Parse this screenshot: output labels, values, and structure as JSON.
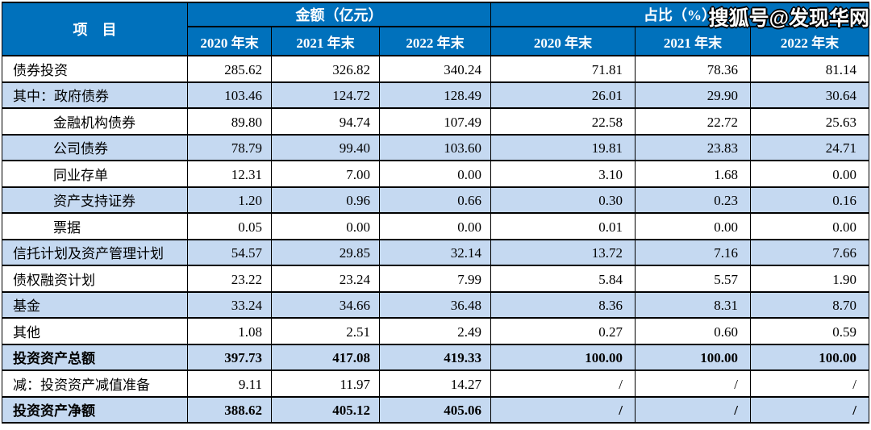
{
  "watermark": "搜狐号@发现华网",
  "colors": {
    "header_bg": "#0071BC",
    "row_alt_bg": "#C5D9F1",
    "border": "#000000",
    "header_text": "#FFFFFF",
    "body_text": "#000000"
  },
  "table": {
    "header": {
      "item_label": "项　目",
      "amount_group": "金额（亿元）",
      "ratio_group": "占比（%）",
      "year_cols": [
        "2020 年末",
        "2021 年末",
        "2022 年末"
      ]
    },
    "rows": [
      {
        "label": "债券投资",
        "indent": false,
        "bold": false,
        "amounts": [
          "285.62",
          "326.82",
          "340.24"
        ],
        "ratios": [
          "71.81",
          "78.36",
          "81.14"
        ]
      },
      {
        "label": "其中：政府债券",
        "indent": false,
        "bold": false,
        "amounts": [
          "103.46",
          "124.72",
          "128.49"
        ],
        "ratios": [
          "26.01",
          "29.90",
          "30.64"
        ]
      },
      {
        "label": "金融机构债券",
        "indent": true,
        "bold": false,
        "amounts": [
          "89.80",
          "94.74",
          "107.49"
        ],
        "ratios": [
          "22.58",
          "22.72",
          "25.63"
        ]
      },
      {
        "label": "公司债券",
        "indent": true,
        "bold": false,
        "amounts": [
          "78.79",
          "99.40",
          "103.60"
        ],
        "ratios": [
          "19.81",
          "23.83",
          "24.71"
        ]
      },
      {
        "label": "同业存单",
        "indent": true,
        "bold": false,
        "amounts": [
          "12.31",
          "7.00",
          "0.00"
        ],
        "ratios": [
          "3.10",
          "1.68",
          "0.00"
        ]
      },
      {
        "label": "资产支持证券",
        "indent": true,
        "bold": false,
        "amounts": [
          "1.20",
          "0.96",
          "0.66"
        ],
        "ratios": [
          "0.30",
          "0.23",
          "0.16"
        ]
      },
      {
        "label": "票据",
        "indent": true,
        "bold": false,
        "amounts": [
          "0.05",
          "0.00",
          "0.00"
        ],
        "ratios": [
          "0.01",
          "0.00",
          "0.00"
        ]
      },
      {
        "label": "信托计划及资产管理计划",
        "indent": false,
        "bold": false,
        "amounts": [
          "54.57",
          "29.85",
          "32.14"
        ],
        "ratios": [
          "13.72",
          "7.16",
          "7.66"
        ]
      },
      {
        "label": "债权融资计划",
        "indent": false,
        "bold": false,
        "amounts": [
          "23.22",
          "23.24",
          "7.99"
        ],
        "ratios": [
          "5.84",
          "5.57",
          "1.90"
        ]
      },
      {
        "label": "基金",
        "indent": false,
        "bold": false,
        "amounts": [
          "33.24",
          "34.66",
          "36.48"
        ],
        "ratios": [
          "8.36",
          "8.31",
          "8.70"
        ]
      },
      {
        "label": "其他",
        "indent": false,
        "bold": false,
        "amounts": [
          "1.08",
          "2.51",
          "2.49"
        ],
        "ratios": [
          "0.27",
          "0.60",
          "0.59"
        ]
      },
      {
        "label": "投资资产总额",
        "indent": false,
        "bold": true,
        "amounts": [
          "397.73",
          "417.08",
          "419.33"
        ],
        "ratios": [
          "100.00",
          "100.00",
          "100.00"
        ]
      },
      {
        "label": "减：投资资产减值准备",
        "indent": false,
        "bold": false,
        "amounts": [
          "9.11",
          "11.97",
          "14.27"
        ],
        "ratios": [
          "/",
          "/",
          "/"
        ]
      },
      {
        "label": "投资资产净额",
        "indent": false,
        "bold": true,
        "amounts": [
          "388.62",
          "405.12",
          "405.06"
        ],
        "ratios": [
          "/",
          "/",
          "/"
        ]
      }
    ]
  }
}
